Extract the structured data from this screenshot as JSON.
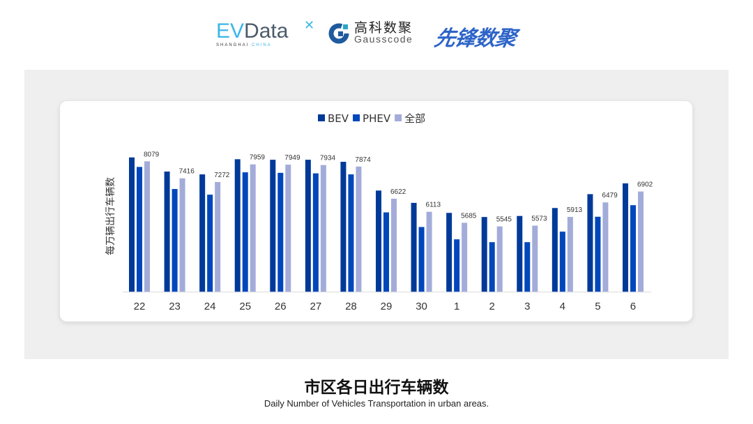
{
  "logos": {
    "evdata": {
      "main": "EVData",
      "sub_a": "SHANGHAI",
      "sub_b": "CHINA"
    },
    "gausscode": {
      "cn": "高科数聚",
      "en": "Gausscode"
    },
    "xianfeng": {
      "cn": "先锋数聚"
    }
  },
  "title": "市区各日出行车辆数",
  "subtitle": "Daily Number of Vehicles Transportation in urban areas.",
  "chart_data": {
    "type": "bar",
    "ylabel": "每万辆出行车辆数",
    "xlabel": "",
    "ylim": [
      3000,
      8400
    ],
    "grid": false,
    "legend_position": "top-center",
    "categories": [
      "22",
      "23",
      "24",
      "25",
      "26",
      "27",
      "28",
      "29",
      "30",
      "1",
      "2",
      "3",
      "4",
      "5",
      "6"
    ],
    "series": [
      {
        "name": "BEV",
        "color": "#003a99",
        "values": [
          8230,
          7680,
          7570,
          8160,
          8140,
          8140,
          8060,
          6940,
          6460,
          6070,
          5910,
          5950,
          6260,
          6800,
          7220
        ]
      },
      {
        "name": "PHEV",
        "color": "#0047bb",
        "values": [
          7860,
          7000,
          6780,
          7650,
          7630,
          7610,
          7570,
          6090,
          5520,
          5040,
          4930,
          4930,
          5340,
          5920,
          6370
        ]
      },
      {
        "name": "全部",
        "color": "#a3acd9",
        "values": [
          8079,
          7416,
          7272,
          7959,
          7949,
          7934,
          7874,
          6622,
          6113,
          5685,
          5545,
          5573,
          5913,
          6479,
          6902
        ],
        "data_labels": [
          "8079",
          "7416",
          "7272",
          "7959",
          "7949",
          "7934",
          "7874",
          "6622",
          "6113",
          "5685",
          "5545",
          "5573",
          "5913",
          "6479",
          "6902"
        ]
      }
    ]
  }
}
